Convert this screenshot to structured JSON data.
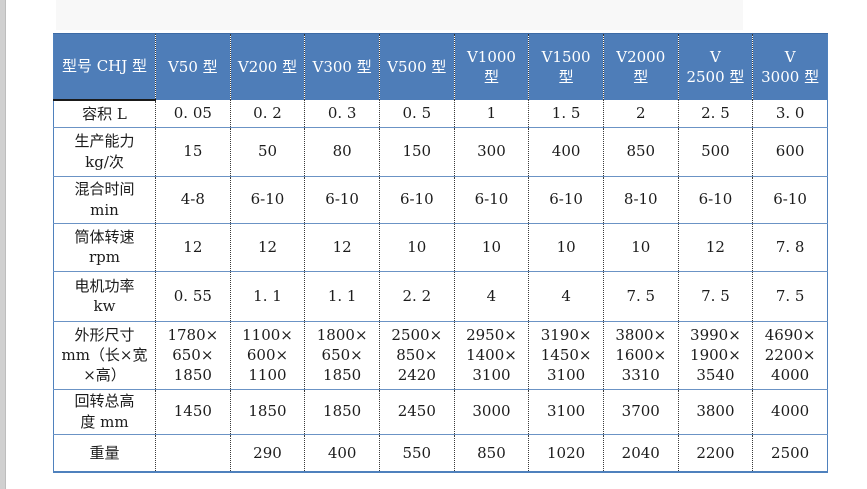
{
  "colors": {
    "page_bg": "#ffffff",
    "header_bg": "#4e7db8",
    "header_text": "#ffffff",
    "header_top_line": "#3d6ba6",
    "outer_border": "#4f81bd",
    "row_line": "#6b93c5",
    "black_line": "#1a1a1a",
    "dotted_line": "#3a3a3a",
    "body_text": "#1c1c1c",
    "scrollbar_gray": "#d0d0d0",
    "shade_gray": "#f8f8f8"
  },
  "table": {
    "header": [
      "型号 CHJ 型",
      "V50 型",
      "V200 型",
      "V300 型",
      "V500 型",
      "V1000\n型",
      "V1500\n型",
      "V2000\n型",
      "V\n2500 型",
      "V\n3000 型"
    ],
    "rows": [
      {
        "label": "容积 L",
        "values": [
          "0. 05",
          "0. 2",
          "0. 3",
          "0. 5",
          "1",
          "1. 5",
          "2",
          "2. 5",
          "3. 0"
        ]
      },
      {
        "label": "生产能力\nkg/次",
        "values": [
          "15",
          "50",
          "80",
          "150",
          "300",
          "400",
          "850",
          "500",
          "600"
        ]
      },
      {
        "label": "混合时间\nmin",
        "values": [
          "4-8",
          "6-10",
          "6-10",
          "6-10",
          "6-10",
          "6-10",
          "8-10",
          "6-10",
          "6-10"
        ]
      },
      {
        "label": "筒体转速\nrpm",
        "values": [
          "12",
          "12",
          "12",
          "10",
          "10",
          "10",
          "10",
          "12",
          "7. 8"
        ]
      },
      {
        "label": "电机功率\nkw",
        "values": [
          "0. 55",
          "1. 1",
          "1. 1",
          "2. 2",
          "4",
          "4",
          "7. 5",
          "7. 5",
          "7. 5"
        ]
      },
      {
        "label": "外形尺寸\nmm（长×宽\n×高）",
        "values": [
          "1780×\n650×\n1850",
          "1100×\n600×\n1100",
          "1800×\n650×\n1850",
          "2500×\n850×\n2420",
          "2950×\n1400×\n3100",
          "3190×\n1450×\n3100",
          "3800×\n1600×\n3310",
          "3990×\n1900×\n3540",
          "4690×\n2200×\n4000"
        ]
      },
      {
        "label": "回转总高\n度 mm",
        "values": [
          "1450",
          "1850",
          "1850",
          "2450",
          "3000",
          "3100",
          "3700",
          "3800",
          "4000"
        ]
      },
      {
        "label": "重量",
        "values": [
          "",
          "290",
          "400",
          "550",
          "850",
          "1020",
          "2040",
          "2200",
          "2500"
        ]
      }
    ]
  }
}
